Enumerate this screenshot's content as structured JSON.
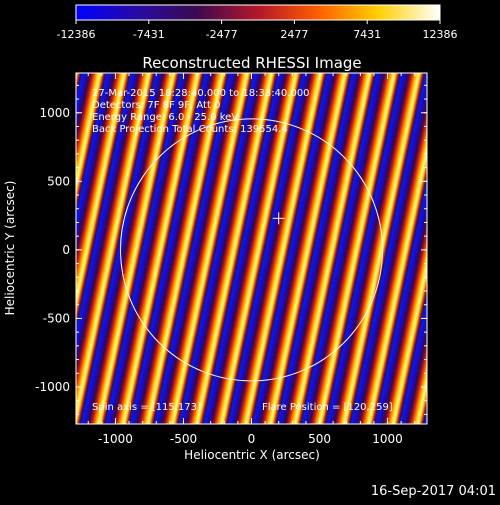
{
  "window": {
    "background": "#000000",
    "foreground": "#ffffff"
  },
  "colorbar": {
    "tick_labels": [
      "-12386",
      "-7431",
      "-2477",
      "2477",
      "7431",
      "12386"
    ],
    "ticks": [
      -12386,
      -7431,
      -2477,
      2477,
      7431,
      12386
    ],
    "range": [
      -12386,
      12386
    ],
    "colormap": "blue-purple-red-yellow-white"
  },
  "plot": {
    "title": "Reconstructed RHESSI Image",
    "xlabel": "Heliocentric X (arcsec)",
    "ylabel": "Heliocentric Y (arcsec)",
    "xlim": [
      -1290,
      1290
    ],
    "ylim": [
      -1270,
      1290
    ],
    "x_tick_labels": [
      "-1000",
      "-500",
      "0",
      "500",
      "1000"
    ],
    "x_ticks": [
      -1000,
      -500,
      0,
      500,
      1000
    ],
    "y_tick_labels": [
      "1000",
      "500",
      "0",
      "-500",
      "-1000"
    ],
    "y_ticks": [
      1000,
      500,
      0,
      -500,
      -1000
    ],
    "annotations": {
      "line1": "27-Mar-2015 18:28:40.000 to 18:33:40.000",
      "line2": "Detectors: 7F 8F 9F, Att 0",
      "line3": "Energy Range: 6.0 - 25.0 keV",
      "line4": "Back Projection   Total Counts: 139554.4"
    },
    "spin_axis": "Spin axis = [115,173]",
    "flare_position": "Flare Position = [120,259]",
    "limb_radius_arcsec": 963,
    "center_marker": [
      200,
      230
    ]
  },
  "footer": {
    "timestamp": "16-Sep-2017 04:01"
  },
  "chart_data": {
    "type": "heatmap",
    "title": "Reconstructed RHESSI Image",
    "xlabel": "Heliocentric X (arcsec)",
    "ylabel": "Heliocentric Y (arcsec)",
    "xlim": [
      -1290,
      1290
    ],
    "ylim": [
      -1270,
      1290
    ],
    "value_range": [
      -12386,
      12386
    ],
    "pattern": "diagonal stripes",
    "grid": false
  }
}
